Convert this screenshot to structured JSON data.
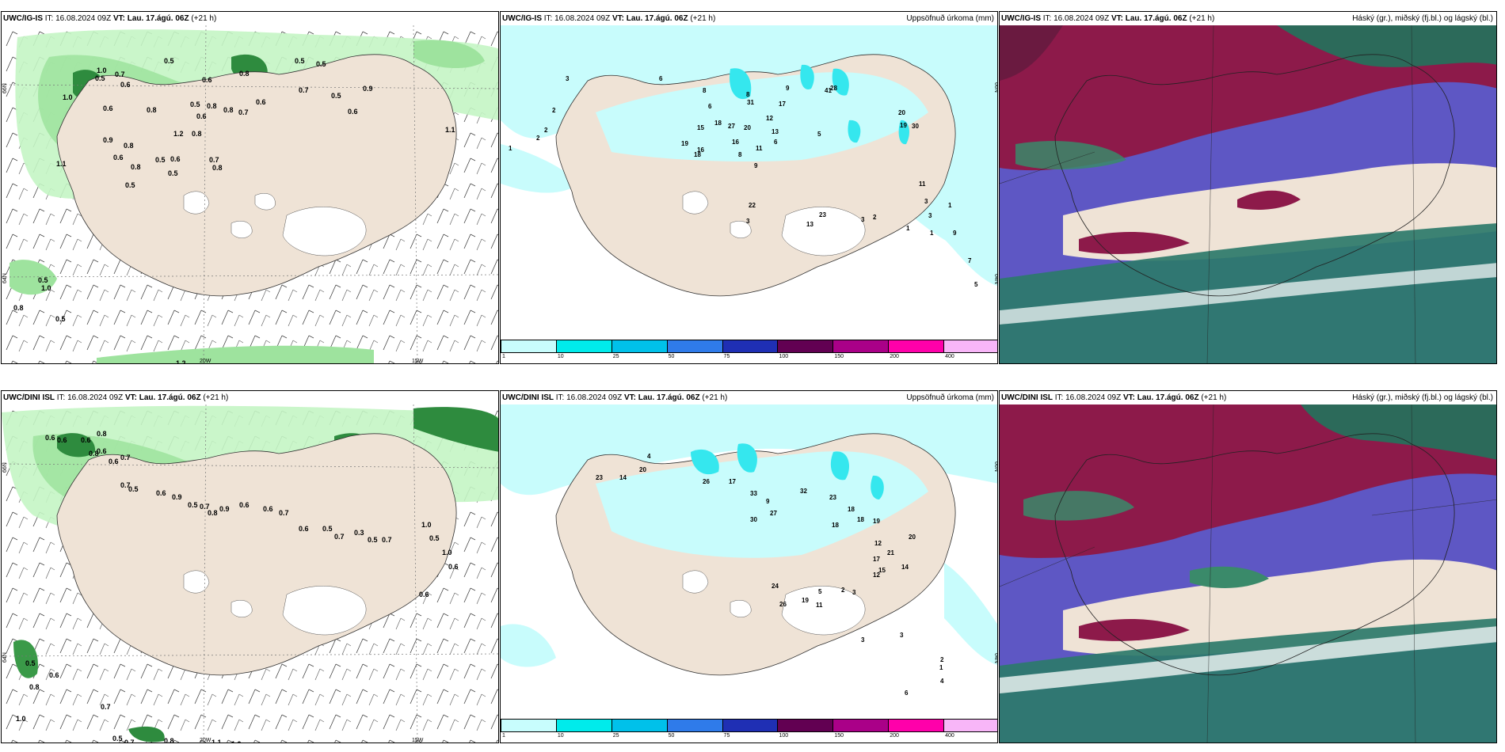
{
  "panels": [
    {
      "model": "UWC/IG-IS",
      "it": "IT: 16.08.2024 09Z",
      "vt": "VT: Lau. 17.ágú. 06Z",
      "lead": "(+21 h)",
      "title": ""
    },
    {
      "model": "UWC/IG-IS",
      "it": "IT: 16.08.2024 09Z",
      "vt": "VT: Lau. 17.ágú. 06Z",
      "lead": "(+21 h)",
      "title": "Uppsöfnuð úrkoma (mm)"
    },
    {
      "model": "UWC/IG-IS",
      "it": "IT: 16.08.2024 09Z",
      "vt": "VT: Lau. 17.ágú. 06Z",
      "lead": "(+21 h)",
      "title": "Háský (gr.), miðský (fj.bl.) og lágský (bl.)"
    },
    {
      "model": "UWC/DINI ISL",
      "it": "IT: 16.08.2024 09Z",
      "vt": "VT: Lau. 17.ágú. 06Z",
      "lead": "(+21 h)",
      "title": ""
    },
    {
      "model": "UWC/DINI ISL",
      "it": "IT: 16.08.2024 09Z",
      "vt": "VT: Lau. 17.ágú. 06Z",
      "lead": "(+21 h)",
      "title": "Uppsöfnuð úrkoma (mm)"
    },
    {
      "model": "UWC/DINI ISL",
      "it": "IT: 16.08.2024 09Z",
      "vt": "VT: Lau. 17.ágú. 06Z",
      "lead": "(+21 h)",
      "title": "Háský (gr.), miðský (fj.bl.) og lágský (bl.)"
    }
  ],
  "axis_labels": {
    "lon_20w": "20W",
    "lon_15w": "15W",
    "lat_66n": "66N",
    "lat_64n": "64N"
  },
  "precip_colorbar": {
    "ticks": [
      "1",
      "10",
      "25",
      "50",
      "75",
      "100",
      "150",
      "200",
      "400"
    ],
    "colors": [
      "#c8fdfd",
      "#00ebeb",
      "#00c1ea",
      "#2f7bea",
      "#1f2fb4",
      "#620052",
      "#aa0088",
      "#ff00aa",
      "#f8b6f8"
    ]
  },
  "colors": {
    "land": "#efe3d6",
    "sea_precip": "#c8fcfc",
    "cyan": "#35e7ee",
    "rain_light": "#c4f5c4",
    "rain_mid": "#7ad07a",
    "rain_dark": "#1e7a28",
    "high_cloud": "#8d1a4a",
    "mid_cloud": "#5e57c4",
    "low_cloud": "#2c7a6a"
  },
  "top_rain_labels": [
    "0.5",
    "0.6",
    "0.8",
    "0.5",
    "0.5",
    "1.0",
    "0.7",
    "0.6",
    "1.0",
    "0.6",
    "0.8",
    "0.5",
    "0.8",
    "0.8",
    "0.7",
    "0.6",
    "0.6",
    "0.9",
    "1.1",
    "0.7",
    "0.5",
    "0.6",
    "1.2",
    "0.8",
    "0.9",
    "0.8",
    "0.6",
    "0.5",
    "0.6",
    "0.7",
    "1.1",
    "0.8",
    "0.5",
    "0.8",
    "0.5",
    "0.5",
    "1.0",
    "0.8",
    "0.5",
    "1.2",
    "0.5",
    "0.9",
    "1.0",
    "0.5"
  ],
  "top_precip_labels": [
    "1",
    "2",
    "2",
    "2",
    "3",
    "6",
    "8",
    "6",
    "8",
    "9",
    "15",
    "31",
    "41",
    "28",
    "17",
    "20",
    "19",
    "30",
    "18",
    "27",
    "20",
    "12",
    "16",
    "16",
    "18",
    "19",
    "8",
    "6",
    "13",
    "11",
    "9",
    "22",
    "3",
    "13",
    "23",
    "3",
    "2",
    "1",
    "3",
    "5",
    "11",
    "3",
    "1",
    "1",
    "9",
    "7",
    "5"
  ],
  "bottom_rain_labels": [
    "0.6",
    "0.6",
    "0.6",
    "0.8",
    "0.6",
    "0.7",
    "0.8",
    "0.6",
    "0.7",
    "0.5",
    "0.6",
    "0.9",
    "0.5",
    "0.7",
    "0.8",
    "0.9",
    "0.6",
    "0.6",
    "0.7",
    "0.6",
    "0.5",
    "0.7",
    "0.3",
    "0.5",
    "0.7",
    "1.0",
    "0.5",
    "1.0",
    "0.6",
    "0.6",
    "0.5",
    "0.6",
    "0.8",
    "1.0",
    "0.7",
    "0.5",
    "0.7",
    "0.8",
    "1.1",
    "1.0"
  ],
  "bottom_precip_labels": [
    "4",
    "23",
    "14",
    "20",
    "26",
    "17",
    "33",
    "9",
    "27",
    "30",
    "32",
    "23",
    "18",
    "18",
    "18",
    "19",
    "20",
    "21",
    "12",
    "17",
    "15",
    "14",
    "12",
    "24",
    "26",
    "19",
    "11",
    "5",
    "2",
    "3",
    "3",
    "3",
    "2",
    "1",
    "4",
    "6"
  ]
}
